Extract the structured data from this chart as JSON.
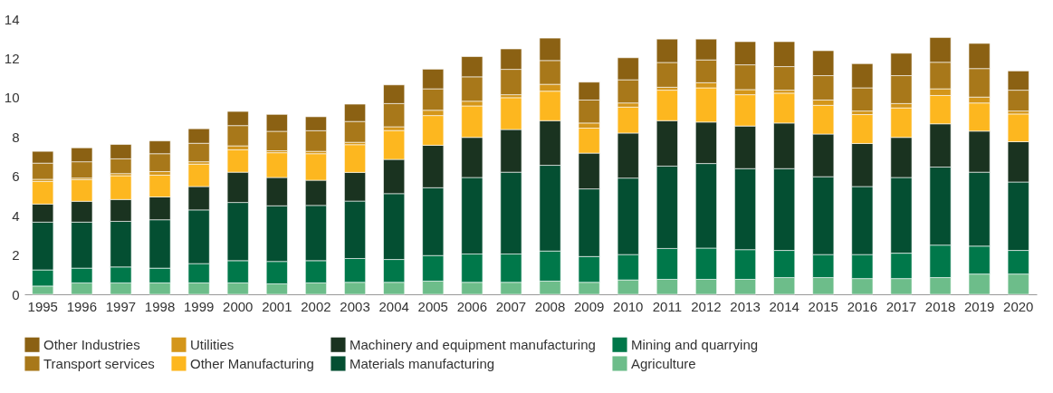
{
  "chart_data": {
    "type": "bar",
    "stacked": true,
    "legend": "bottom",
    "grid": false,
    "categories": [
      "1995",
      "1996",
      "1997",
      "1998",
      "1999",
      "2000",
      "2001",
      "2002",
      "2003",
      "2004",
      "2005",
      "2006",
      "2007",
      "2008",
      "2009",
      "2010",
      "2011",
      "2012",
      "2013",
      "2014",
      "2015",
      "2016",
      "2017",
      "2018",
      "2019",
      "2020"
    ],
    "ylim": [
      0,
      14
    ],
    "yticks": [
      0,
      2,
      4,
      6,
      8,
      10,
      12,
      14
    ],
    "series": [
      {
        "name": "Agriculture",
        "color": "#6dbd8a",
        "values": [
          0.42,
          0.58,
          0.58,
          0.58,
          0.58,
          0.58,
          0.53,
          0.58,
          0.61,
          0.61,
          0.67,
          0.61,
          0.61,
          0.67,
          0.61,
          0.73,
          0.76,
          0.76,
          0.76,
          0.85,
          0.85,
          0.8,
          0.8,
          0.85,
          1.03,
          1.03
        ]
      },
      {
        "name": "Mining and quarrying",
        "color": "#00784a",
        "values": [
          0.82,
          0.75,
          0.81,
          0.75,
          0.98,
          1.13,
          1.14,
          1.13,
          1.21,
          1.16,
          1.3,
          1.44,
          1.44,
          1.53,
          1.31,
          1.29,
          1.57,
          1.59,
          1.51,
          1.38,
          1.17,
          1.22,
          1.29,
          1.65,
          1.42,
          1.2
        ]
      },
      {
        "name": "Materials manufacturing",
        "color": "#044f32",
        "values": [
          2.43,
          2.34,
          2.32,
          2.46,
          2.73,
          2.96,
          2.83,
          2.81,
          2.92,
          3.35,
          3.45,
          3.89,
          4.16,
          4.36,
          3.44,
          3.89,
          4.19,
          4.3,
          4.12,
          4.16,
          3.96,
          3.46,
          3.85,
          3.97,
          3.76,
          3.48
        ]
      },
      {
        "name": "Machinery and equipment manufacturing",
        "color": "#1a3320",
        "values": [
          0.92,
          1.06,
          1.11,
          1.16,
          1.19,
          1.54,
          1.44,
          1.28,
          1.46,
          1.74,
          2.16,
          2.04,
          2.17,
          2.27,
          1.82,
          2.29,
          2.31,
          2.11,
          2.17,
          2.32,
          2.17,
          2.19,
          2.04,
          2.2,
          2.09,
          2.05
        ]
      },
      {
        "name": "Other Manufacturing",
        "color": "#fdb71f",
        "values": [
          1.15,
          1.1,
          1.21,
          1.11,
          1.14,
          1.14,
          1.26,
          1.35,
          1.41,
          1.47,
          1.51,
          1.6,
          1.62,
          1.5,
          1.27,
          1.32,
          1.55,
          1.74,
          1.59,
          1.52,
          1.46,
          1.47,
          1.5,
          1.44,
          1.43,
          1.41
        ]
      },
      {
        "name": "Utilities",
        "color": "#d4961a",
        "values": [
          0.11,
          0.08,
          0.11,
          0.18,
          0.12,
          0.2,
          0.1,
          0.12,
          0.12,
          0.19,
          0.27,
          0.24,
          0.15,
          0.35,
          0.26,
          0.21,
          0.15,
          0.26,
          0.26,
          0.15,
          0.27,
          0.18,
          0.22,
          0.34,
          0.3,
          0.15
        ]
      },
      {
        "name": "Transport services",
        "color": "#a8781a",
        "values": [
          0.82,
          0.83,
          0.75,
          0.91,
          0.94,
          1.03,
          0.99,
          1.05,
          1.06,
          1.18,
          1.09,
          1.24,
          1.29,
          1.21,
          1.17,
          1.18,
          1.26,
          1.16,
          1.26,
          1.2,
          1.24,
          1.18,
          1.42,
          1.35,
          1.45,
          1.06
        ]
      },
      {
        "name": "Other Industries",
        "color": "#8b6113",
        "values": [
          0.6,
          0.71,
          0.73,
          0.65,
          0.74,
          0.72,
          0.86,
          0.71,
          0.88,
          0.95,
          1.0,
          1.03,
          1.04,
          1.14,
          0.91,
          1.12,
          1.19,
          1.06,
          1.18,
          1.27,
          1.27,
          1.23,
          1.14,
          1.26,
          1.28,
          0.98
        ]
      }
    ]
  }
}
